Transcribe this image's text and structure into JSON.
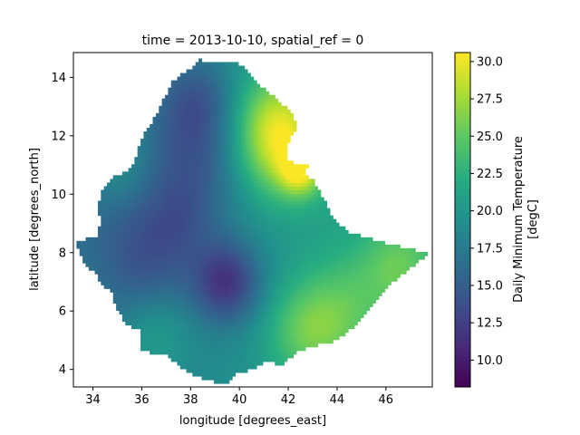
{
  "chart_data": {
    "type": "heatmap",
    "title": "time = 2013-10-10, spatial_ref = 0",
    "xlabel": "longitude [degrees_east]",
    "ylabel": "latitude [degrees_north]",
    "xlim": [
      33.2,
      47.9
    ],
    "ylim": [
      3.4,
      14.85
    ],
    "x_ticks": [
      34,
      36,
      38,
      40,
      42,
      44,
      46
    ],
    "y_ticks": [
      4,
      6,
      8,
      10,
      12,
      14
    ],
    "grid": false,
    "colormap": "viridis",
    "colorbar": {
      "label_line1": "Daily Minimum Temperature",
      "label_line2": "[degC]",
      "range": [
        8.2,
        30.6
      ],
      "ticks": [
        "10.0",
        "12.5",
        "15.0",
        "17.5",
        "20.0",
        "22.5",
        "25.0",
        "27.5",
        "30.0"
      ]
    },
    "region_outline_lonlat": [
      [
        34.9,
        10.6
      ],
      [
        35.6,
        10.9
      ],
      [
        36.0,
        11.9
      ],
      [
        36.5,
        12.6
      ],
      [
        37.3,
        13.9
      ],
      [
        38.0,
        14.3
      ],
      [
        38.4,
        14.6
      ],
      [
        38.8,
        14.55
      ],
      [
        39.8,
        14.55
      ],
      [
        40.2,
        14.3
      ],
      [
        41.0,
        13.6
      ],
      [
        41.6,
        13.2
      ],
      [
        42.1,
        12.8
      ],
      [
        42.4,
        12.3
      ],
      [
        42.0,
        11.8
      ],
      [
        41.9,
        11.3
      ],
      [
        42.2,
        11.05
      ],
      [
        42.8,
        11.0
      ],
      [
        42.7,
        10.7
      ],
      [
        43.1,
        10.4
      ],
      [
        43.4,
        9.9
      ],
      [
        43.9,
        9.1
      ],
      [
        44.5,
        8.7
      ],
      [
        45.5,
        8.45
      ],
      [
        46.8,
        8.15
      ],
      [
        47.8,
        8.0
      ],
      [
        47.0,
        7.5
      ],
      [
        46.0,
        6.8
      ],
      [
        45.5,
        6.2
      ],
      [
        44.9,
        5.6
      ],
      [
        44.0,
        5.0
      ],
      [
        43.0,
        4.8
      ],
      [
        42.4,
        4.6
      ],
      [
        41.7,
        4.15
      ],
      [
        41.2,
        4.3
      ],
      [
        40.5,
        4.0
      ],
      [
        39.9,
        3.9
      ],
      [
        39.5,
        3.5
      ],
      [
        38.9,
        3.6
      ],
      [
        38.2,
        3.8
      ],
      [
        37.6,
        4.1
      ],
      [
        37.0,
        4.5
      ],
      [
        36.2,
        4.6
      ],
      [
        36.0,
        4.7
      ],
      [
        36.0,
        5.3
      ],
      [
        35.3,
        5.6
      ],
      [
        34.9,
        6.2
      ],
      [
        34.8,
        6.6
      ],
      [
        34.3,
        7.0
      ],
      [
        34.1,
        7.3
      ],
      [
        33.7,
        7.6
      ],
      [
        33.4,
        8.1
      ],
      [
        33.3,
        8.4
      ],
      [
        33.9,
        8.5
      ],
      [
        34.2,
        8.6
      ],
      [
        34.3,
        9.1
      ],
      [
        34.2,
        9.6
      ],
      [
        34.4,
        10.2
      ]
    ],
    "temperature_features": [
      {
        "lon": 39.5,
        "lat": 7.0,
        "sigma": 1.0,
        "delta": -7.5
      },
      {
        "lon": 38.2,
        "lat": 11.0,
        "sigma": 1.5,
        "delta": -4.0
      },
      {
        "lon": 38.3,
        "lat": 13.2,
        "sigma": 1.1,
        "delta": -4.0
      },
      {
        "lon": 36.3,
        "lat": 7.6,
        "sigma": 1.3,
        "delta": -3.0
      },
      {
        "lon": 35.5,
        "lat": 9.2,
        "sigma": 1.5,
        "delta": -1.5
      },
      {
        "lon": 37.6,
        "lat": 9.0,
        "sigma": 1.0,
        "delta": -2.0
      },
      {
        "lon": 41.6,
        "lat": 12.5,
        "sigma": 1.3,
        "delta": 7.5
      },
      {
        "lon": 42.5,
        "lat": 10.8,
        "sigma": 0.6,
        "delta": 7.0
      },
      {
        "lon": 41.5,
        "lat": 11.3,
        "sigma": 1.2,
        "delta": 4.5
      },
      {
        "lon": 42.8,
        "lat": 5.3,
        "sigma": 1.2,
        "delta": 5.0
      },
      {
        "lon": 44.5,
        "lat": 6.2,
        "sigma": 1.3,
        "delta": 3.0
      },
      {
        "lon": 46.5,
        "lat": 7.6,
        "sigma": 1.0,
        "delta": 3.5
      },
      {
        "lon": 36.5,
        "lat": 5.2,
        "sigma": 1.0,
        "delta": 2.5
      },
      {
        "lon": 35.0,
        "lat": 11.0,
        "sigma": 1.0,
        "delta": 2.5
      }
    ],
    "temperature_base": 19.0,
    "temperature_east_gradient": 0.35,
    "temperature_range": [
      8.5,
      30.5
    ]
  }
}
